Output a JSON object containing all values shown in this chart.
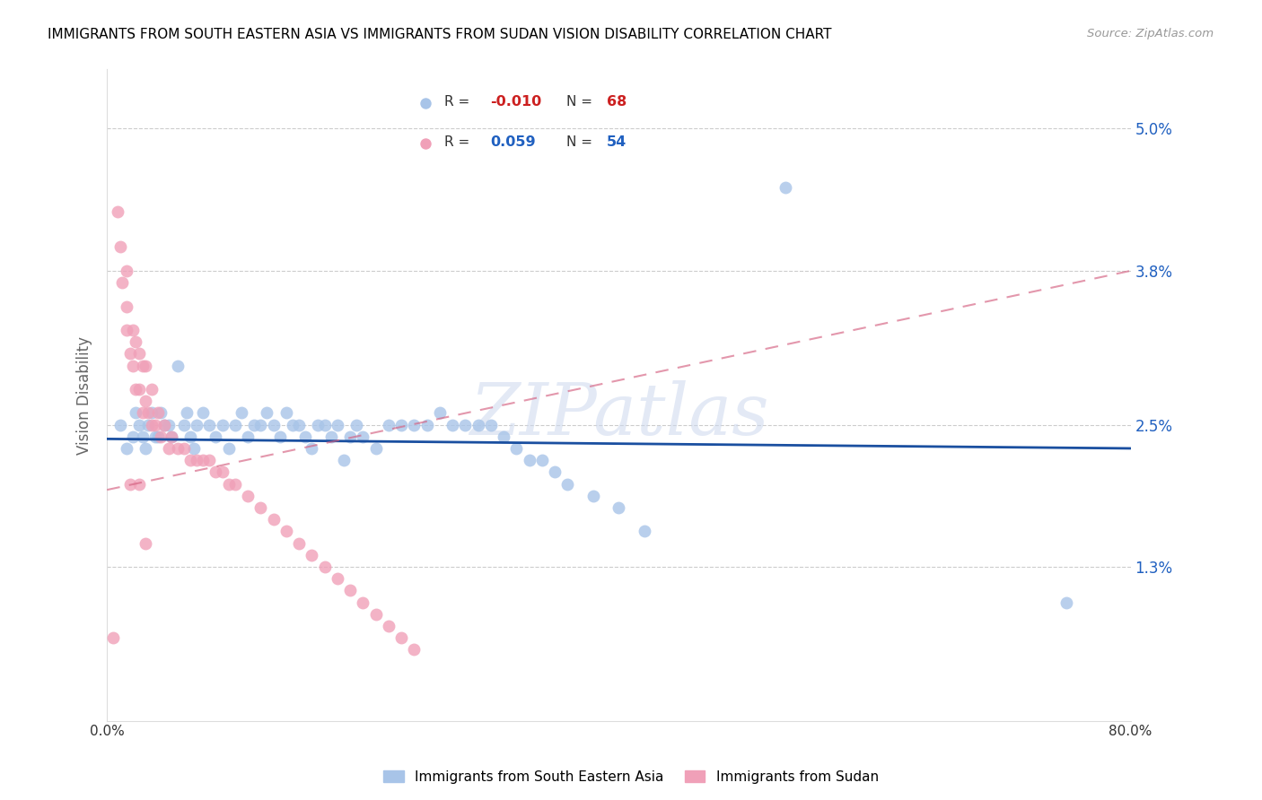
{
  "title": "IMMIGRANTS FROM SOUTH EASTERN ASIA VS IMMIGRANTS FROM SUDAN VISION DISABILITY CORRELATION CHART",
  "source": "Source: ZipAtlas.com",
  "ylabel": "Vision Disability",
  "ytick_labels": [
    "5.0%",
    "3.8%",
    "2.5%",
    "1.3%"
  ],
  "ytick_values": [
    0.05,
    0.038,
    0.025,
    0.013
  ],
  "xlim": [
    0.0,
    0.8
  ],
  "ylim": [
    0.0,
    0.055
  ],
  "legend_blue_r": "-0.010",
  "legend_blue_n": "68",
  "legend_pink_r": "0.059",
  "legend_pink_n": "54",
  "blue_color": "#a8c4e8",
  "pink_color": "#f0a0b8",
  "blue_line_color": "#1a4fa0",
  "pink_line_color": "#d46080",
  "watermark": "ZIPatlas",
  "blue_scatter_x": [
    0.01,
    0.015,
    0.02,
    0.022,
    0.025,
    0.028,
    0.03,
    0.032,
    0.035,
    0.038,
    0.04,
    0.042,
    0.045,
    0.048,
    0.05,
    0.055,
    0.06,
    0.062,
    0.065,
    0.068,
    0.07,
    0.075,
    0.08,
    0.085,
    0.09,
    0.095,
    0.1,
    0.105,
    0.11,
    0.115,
    0.12,
    0.125,
    0.13,
    0.135,
    0.14,
    0.145,
    0.15,
    0.155,
    0.16,
    0.165,
    0.17,
    0.175,
    0.18,
    0.185,
    0.19,
    0.195,
    0.2,
    0.21,
    0.22,
    0.23,
    0.24,
    0.25,
    0.26,
    0.27,
    0.28,
    0.29,
    0.3,
    0.31,
    0.32,
    0.33,
    0.34,
    0.35,
    0.36,
    0.38,
    0.4,
    0.42,
    0.53,
    0.75
  ],
  "blue_scatter_y": [
    0.025,
    0.023,
    0.024,
    0.026,
    0.025,
    0.024,
    0.023,
    0.025,
    0.026,
    0.024,
    0.024,
    0.026,
    0.025,
    0.025,
    0.024,
    0.03,
    0.025,
    0.026,
    0.024,
    0.023,
    0.025,
    0.026,
    0.025,
    0.024,
    0.025,
    0.023,
    0.025,
    0.026,
    0.024,
    0.025,
    0.025,
    0.026,
    0.025,
    0.024,
    0.026,
    0.025,
    0.025,
    0.024,
    0.023,
    0.025,
    0.025,
    0.024,
    0.025,
    0.022,
    0.024,
    0.025,
    0.024,
    0.023,
    0.025,
    0.025,
    0.025,
    0.025,
    0.026,
    0.025,
    0.025,
    0.025,
    0.025,
    0.024,
    0.023,
    0.022,
    0.022,
    0.021,
    0.02,
    0.019,
    0.018,
    0.016,
    0.045,
    0.01
  ],
  "pink_scatter_x": [
    0.005,
    0.008,
    0.01,
    0.012,
    0.015,
    0.015,
    0.018,
    0.02,
    0.02,
    0.022,
    0.022,
    0.025,
    0.025,
    0.028,
    0.028,
    0.03,
    0.03,
    0.032,
    0.035,
    0.035,
    0.038,
    0.04,
    0.042,
    0.045,
    0.048,
    0.05,
    0.055,
    0.06,
    0.065,
    0.07,
    0.075,
    0.08,
    0.085,
    0.09,
    0.095,
    0.1,
    0.11,
    0.12,
    0.13,
    0.14,
    0.15,
    0.16,
    0.17,
    0.18,
    0.19,
    0.2,
    0.21,
    0.22,
    0.23,
    0.24,
    0.015,
    0.018,
    0.025,
    0.03
  ],
  "pink_scatter_y": [
    0.007,
    0.043,
    0.04,
    0.037,
    0.035,
    0.033,
    0.031,
    0.033,
    0.03,
    0.032,
    0.028,
    0.031,
    0.028,
    0.03,
    0.026,
    0.03,
    0.027,
    0.026,
    0.028,
    0.025,
    0.025,
    0.026,
    0.024,
    0.025,
    0.023,
    0.024,
    0.023,
    0.023,
    0.022,
    0.022,
    0.022,
    0.022,
    0.021,
    0.021,
    0.02,
    0.02,
    0.019,
    0.018,
    0.017,
    0.016,
    0.015,
    0.014,
    0.013,
    0.012,
    0.011,
    0.01,
    0.009,
    0.008,
    0.007,
    0.006,
    0.038,
    0.02,
    0.02,
    0.015
  ],
  "blue_trend_x": [
    0.0,
    0.8
  ],
  "blue_trend_y": [
    0.0238,
    0.023
  ],
  "pink_trend_x": [
    0.0,
    0.8
  ],
  "pink_trend_y": [
    0.0195,
    0.038
  ]
}
